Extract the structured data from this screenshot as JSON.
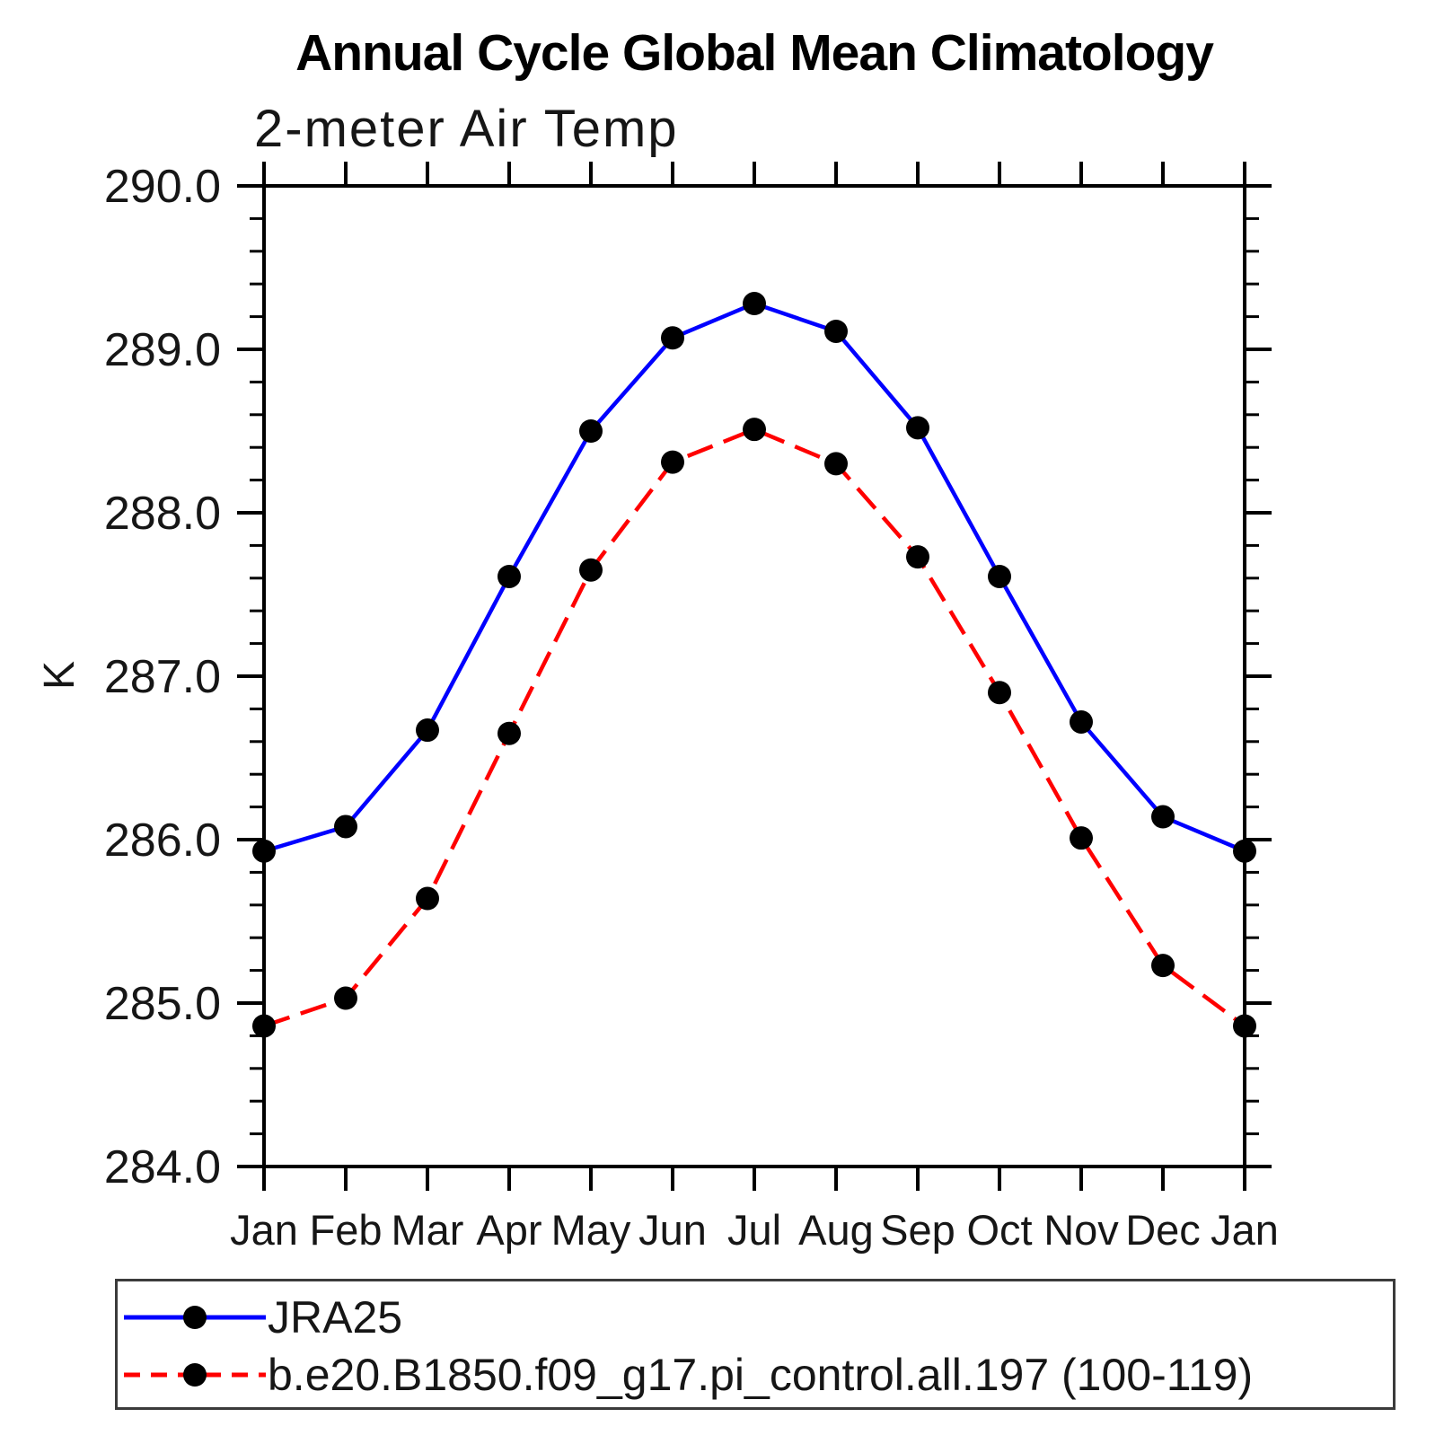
{
  "chart_data": {
    "type": "line",
    "title": "Annual Cycle Global Mean Climatology",
    "subtitle": "2-meter Air Temp",
    "ylabel": "K",
    "xlabel": "",
    "categories": [
      "Jan",
      "Feb",
      "Mar",
      "Apr",
      "May",
      "Jun",
      "Jul",
      "Aug",
      "Sep",
      "Oct",
      "Nov",
      "Dec",
      "Jan"
    ],
    "ylim": [
      284.0,
      290.0
    ],
    "ytick_major": 1.0,
    "ytick_minor": 0.2,
    "ytick_labels": [
      "284.0",
      "285.0",
      "286.0",
      "287.0",
      "288.0",
      "289.0",
      "290.0"
    ],
    "grid": false,
    "legend_position": "bottom",
    "axis_color": "#000000",
    "series": [
      {
        "name": "JRA25",
        "color": "#0000ff",
        "style": "solid",
        "marker": "circle",
        "marker_color": "#000000",
        "values": [
          285.93,
          286.08,
          286.67,
          287.61,
          288.5,
          289.07,
          289.28,
          289.11,
          288.52,
          287.61,
          286.72,
          286.14,
          285.93
        ]
      },
      {
        "name": "b.e20.B1850.f09_g17.pi_control.all.197 (100-119)",
        "color": "#ff0000",
        "style": "dashed",
        "marker": "circle",
        "marker_color": "#000000",
        "values": [
          284.86,
          285.03,
          285.64,
          286.65,
          287.65,
          288.31,
          288.51,
          288.3,
          287.73,
          286.9,
          286.01,
          285.23,
          284.86
        ]
      }
    ]
  }
}
